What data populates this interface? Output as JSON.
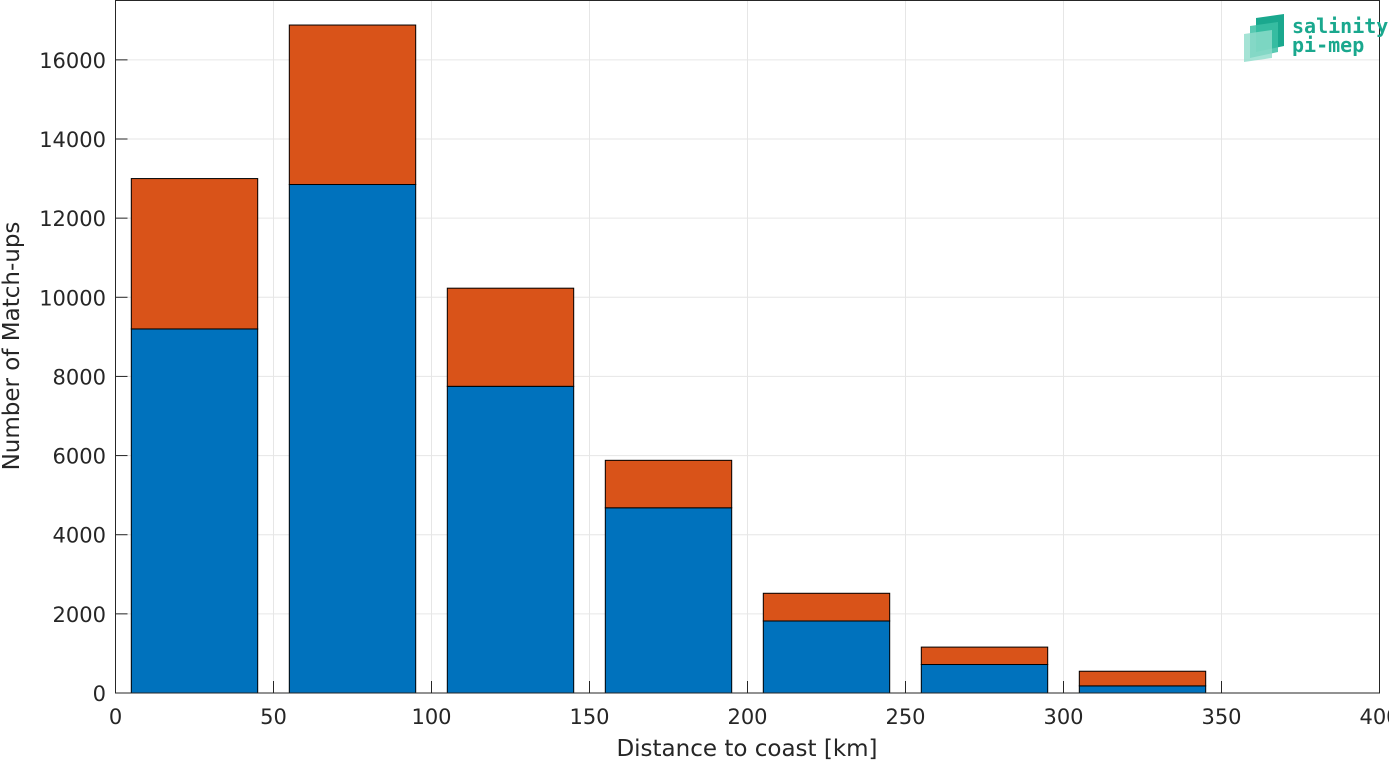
{
  "chart_data": {
    "type": "bar",
    "stacked": true,
    "bin_edges": [
      [
        5,
        45
      ],
      [
        55,
        95
      ],
      [
        105,
        145
      ],
      [
        155,
        195
      ],
      [
        205,
        245
      ],
      [
        255,
        295
      ],
      [
        305,
        345
      ]
    ],
    "series": [
      {
        "values": [
          9200,
          12850,
          7750,
          4680,
          1820,
          720,
          180
        ],
        "color": "#0072bd"
      },
      {
        "values": [
          3800,
          4030,
          2480,
          1200,
          700,
          440,
          370
        ],
        "color": "#d95319"
      }
    ],
    "xlabel": "Distance to coast [km]",
    "ylabel": "Number of Match-ups",
    "xlim": [
      0,
      400
    ],
    "ylim": [
      0,
      17500
    ],
    "xticks": [
      0,
      50,
      100,
      150,
      200,
      250,
      300,
      350,
      400
    ],
    "yticks": [
      0,
      2000,
      4000,
      6000,
      8000,
      10000,
      12000,
      14000,
      16000
    ],
    "grid": true
  },
  "logo": {
    "line1": "salinity",
    "line2": "pi-mep"
  }
}
